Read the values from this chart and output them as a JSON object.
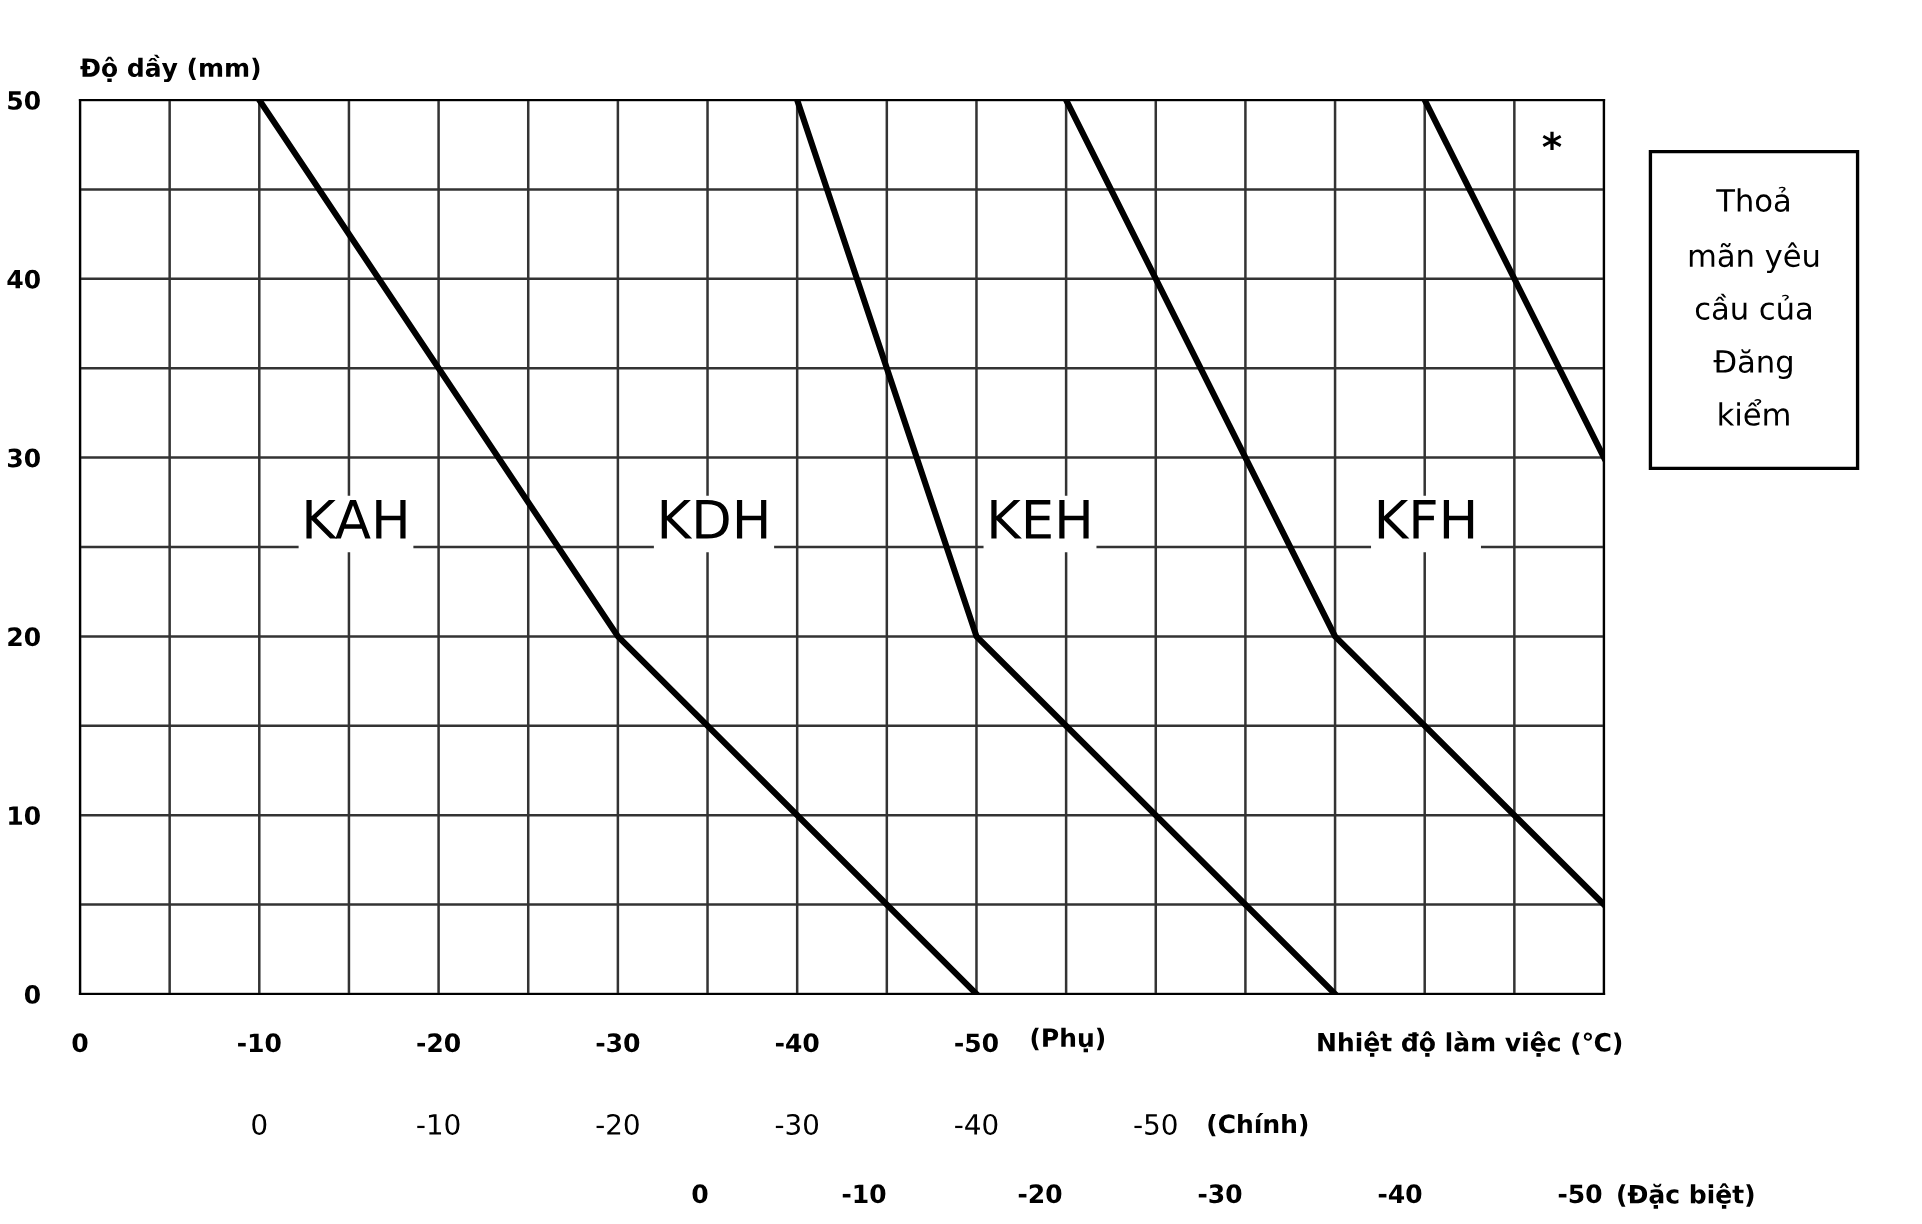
{
  "chart_data": {
    "type": "line",
    "ylabel": "Độ dầy (mm)",
    "xlabel": "(Phụ)",
    "x2label": "(Chính)",
    "xlim": [
      0,
      -85
    ],
    "xticks": [
      0,
      {
        "value": -5,
        "label": null
      },
      -10,
      {
        "value": -15,
        "label": null
      },
      -20,
      {
        "value": -25,
        "label": null
      },
      -30,
      {
        "value": -35,
        "label": null
      },
      -40,
      {
        "value": -45,
        "label": null
      },
      -50,
      {
        "value": -55,
        "label": null
      },
      {
        "value": -60,
        "label": null
      },
      {
        "value": -65,
        "label": null
      },
      {
        "value": -70,
        "label": null
      },
      {
        "value": -75,
        "label": null
      },
      {
        "value": -80,
        "label": null
      },
      {
        "value": -85,
        "label": null
      }
    ],
    "x2lim": [
      10,
      -75
    ],
    "x2ticks": [
      0,
      -10,
      -20,
      -30,
      -40,
      -50
    ],
    "ylim": [
      0,
      50
    ],
    "yticks": [
      0,
      {
        "value": 5,
        "label": null
      },
      10,
      {
        "value": 15,
        "label": null
      },
      20,
      {
        "value": 25,
        "label": null
      },
      30,
      {
        "value": 35,
        "label": null
      },
      40,
      {
        "value": 45,
        "label": null
      },
      50
    ],
    "grid": true,
    "marker": "none",
    "line_style": "solid",
    "series": [
      {
        "color": "#000000",
        "x": [
          -10,
          -30,
          -50
        ],
        "values": [
          50,
          20,
          0
        ]
      },
      {
        "color": "#000000",
        "x": [
          -40,
          -45,
          -50,
          -70
        ],
        "values": [
          50,
          35,
          20,
          0
        ]
      },
      {
        "color": "#000000",
        "x": [
          -55,
          -70,
          -85
        ],
        "values": [
          50,
          20,
          5
        ]
      },
      {
        "color": "#000000",
        "x": [
          -75,
          -85
        ],
        "values": [
          50,
          30
        ]
      }
    ],
    "annotations": [
      "KAH",
      "KDH",
      "KEH",
      "KFH",
      "*",
      "Nhiệt độ làm việc (℃)",
      "Thoả\nmãn yêu\ncầu của\nĐăng\nkiểm",
      "(Đặc biệt)",
      "0",
      "-10",
      "-20",
      "-30",
      "-40",
      "-50"
    ]
  }
}
